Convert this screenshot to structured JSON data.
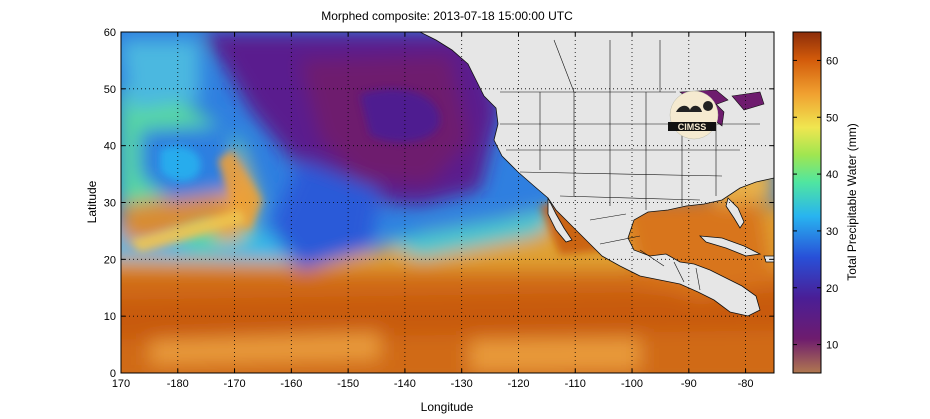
{
  "title": "Morphed composite: 2013-07-18 15:00:00 UTC",
  "xlabel": "Longitude",
  "ylabel": "Latitude",
  "colorbar": {
    "label": "Total Precipitable Water (mm)",
    "range": [
      5,
      65
    ],
    "ticks": [
      "10",
      "20",
      "30",
      "40",
      "50",
      "60"
    ],
    "tick_values": [
      10,
      20,
      30,
      40,
      50,
      60
    ],
    "colormap": [
      "#b07850",
      "#6e1c6e",
      "#4a1e96",
      "#2850d8",
      "#28b4f0",
      "#50e6a0",
      "#a0e650",
      "#f0e650",
      "#f0a030",
      "#d25a0a",
      "#8c2d0a"
    ]
  },
  "map": {
    "x_ticks": [
      "170",
      "-180",
      "-170",
      "-160",
      "-150",
      "-140",
      "-130",
      "-120",
      "-110",
      "-100",
      "-90",
      "-80"
    ],
    "x_tick_values": [
      170,
      180,
      190,
      200,
      210,
      220,
      230,
      240,
      250,
      260,
      270,
      280
    ],
    "x_range": [
      170,
      285
    ],
    "y_ticks": [
      "0",
      "10",
      "20",
      "30",
      "40",
      "50",
      "60"
    ],
    "y_tick_values": [
      0,
      10,
      20,
      30,
      40,
      50,
      60
    ],
    "y_range": [
      0,
      60
    ],
    "grid": "dotted",
    "land_color": "#e6e6e6",
    "logo_text": "CIMSS"
  }
}
